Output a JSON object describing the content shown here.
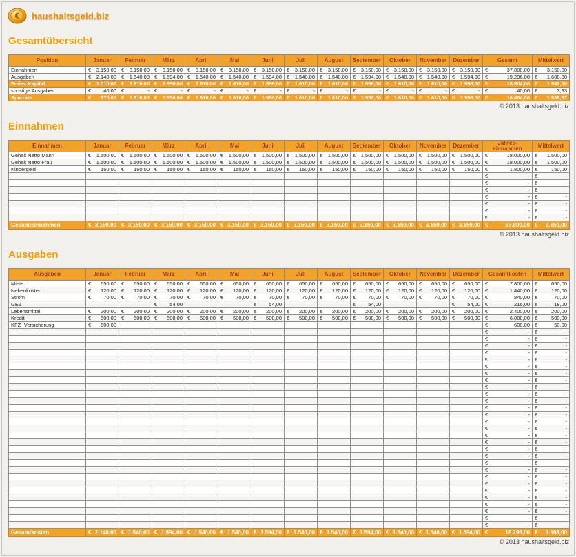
{
  "logo": {
    "text": "haushaltsgeld.biz",
    "icon": "euro-coin-logo-icon"
  },
  "copyright": "© 2013 haushaltsgeld.biz",
  "currency_symbol": "€",
  "colors": {
    "accent_orange": "#f2a129",
    "title_orange": "#f59c00",
    "header_text": "#9b3402",
    "page_background": "#f2f0ec",
    "grid_border": "#8f8f8f"
  },
  "sections": [
    {
      "title": "Gesamtübersicht",
      "table_name": "table-gesamtuebersicht",
      "columns": [
        "Position",
        "Januar",
        "Februar",
        "März",
        "April",
        "Mai",
        "Juni",
        "Juli",
        "August",
        "September",
        "Oktober",
        "November",
        "Dezember",
        "Gesamt",
        "Mittelwert"
      ],
      "rows": [
        {
          "label": "Einnahmen",
          "hl": false,
          "values": [
            "3.150,00",
            "3.150,00",
            "3.150,00",
            "3.150,00",
            "3.150,00",
            "3.150,00",
            "3.150,00",
            "3.150,00",
            "3.150,00",
            "3.150,00",
            "3.150,00",
            "3.150,00",
            "37.800,00",
            "3.150,00"
          ]
        },
        {
          "label": "Ausgaben",
          "hl": false,
          "values": [
            "2.140,00",
            "1.540,00",
            "1.594,00",
            "1.540,00",
            "1.540,00",
            "1.594,00",
            "1.540,00",
            "1.540,00",
            "1.594,00",
            "1.540,00",
            "1.540,00",
            "1.594,00",
            "19.296,00",
            "1.608,00"
          ]
        },
        {
          "label": "Freies Kapital",
          "hl": true,
          "values": [
            "1.010,00",
            "1.610,00",
            "1.556,00",
            "1.610,00",
            "1.610,00",
            "1.556,00",
            "1.610,00",
            "1.610,00",
            "1.556,00",
            "1.610,00",
            "1.610,00",
            "1.556,00",
            "18.504,00",
            "1.542,00"
          ]
        },
        {
          "label": "sonstige Ausgaben",
          "hl": false,
          "values": [
            "40,00",
            "-",
            "-",
            "-",
            "-",
            "-",
            "-",
            "-",
            "-",
            "-",
            "-",
            "-",
            "40,00",
            "3,33"
          ]
        },
        {
          "label": "Sparrate",
          "hl": true,
          "values": [
            "970,00",
            "1.610,00",
            "1.556,00",
            "1.610,00",
            "1.610,00",
            "1.556,00",
            "1.610,00",
            "1.610,00",
            "1.556,00",
            "1.610,00",
            "1.610,00",
            "1.556,00",
            "18.464,00",
            "1.538,67"
          ]
        }
      ],
      "empty_rows": null,
      "footer": null
    },
    {
      "title": "Einnahmen",
      "table_name": "table-einnahmen",
      "columns": [
        "Einnahmen",
        "Januar",
        "Februar",
        "März",
        "April",
        "Mai",
        "Juni",
        "Juli",
        "August",
        "September",
        "Oktober",
        "November",
        "Dezember",
        "Jahres-\neinnahmen",
        "Mittelwert"
      ],
      "rows": [
        {
          "label": "Gehalt Netto Mann",
          "hl": false,
          "values": [
            "1.500,00",
            "1.500,00",
            "1.500,00",
            "1.500,00",
            "1.500,00",
            "1.500,00",
            "1.500,00",
            "1.500,00",
            "1.500,00",
            "1.500,00",
            "1.500,00",
            "1.500,00",
            "18.000,00",
            "1.500,00"
          ]
        },
        {
          "label": "Gehalt Netto Frau",
          "hl": false,
          "values": [
            "1.500,00",
            "1.500,00",
            "1.500,00",
            "1.500,00",
            "1.500,00",
            "1.500,00",
            "1.500,00",
            "1.500,00",
            "1.500,00",
            "1.500,00",
            "1.500,00",
            "1.500,00",
            "18.000,00",
            "1.500,00"
          ]
        },
        {
          "label": "Kindergeld",
          "hl": false,
          "values": [
            "150,00",
            "150,00",
            "150,00",
            "150,00",
            "150,00",
            "150,00",
            "150,00",
            "150,00",
            "150,00",
            "150,00",
            "150,00",
            "150,00",
            "1.800,00",
            "150,00"
          ]
        }
      ],
      "empty_rows": {
        "count": 7,
        "values": [
          "",
          "",
          "",
          "",
          "",
          "",
          "",
          "",
          "",
          "",
          "",
          "",
          "-",
          "-"
        ]
      },
      "footer": {
        "label": "Gesamteinnahmen",
        "values": [
          "3.150,00",
          "3.150,00",
          "3.150,00",
          "3.150,00",
          "3.150,00",
          "3.150,00",
          "3.150,00",
          "3.150,00",
          "3.150,00",
          "3.150,00",
          "3.150,00",
          "3.150,00",
          "37.800,00",
          "3.150,00"
        ]
      }
    },
    {
      "title": "Ausgaben",
      "table_name": "table-ausgaben",
      "columns": [
        "Ausgaben",
        "Januar",
        "Februar",
        "März",
        "April",
        "Mai",
        "Juni",
        "Juli",
        "August",
        "September",
        "Oktober",
        "November",
        "Dezember",
        "Gesamtkosten",
        "Mittelwert"
      ],
      "rows": [
        {
          "label": "Miete",
          "hl": false,
          "values": [
            "650,00",
            "650,00",
            "650,00",
            "650,00",
            "650,00",
            "650,00",
            "650,00",
            "650,00",
            "650,00",
            "650,00",
            "650,00",
            "650,00",
            "7.800,00",
            "650,00"
          ]
        },
        {
          "label": "Nebenkosten",
          "hl": false,
          "values": [
            "120,00",
            "120,00",
            "120,00",
            "120,00",
            "120,00",
            "120,00",
            "120,00",
            "120,00",
            "120,00",
            "120,00",
            "120,00",
            "120,00",
            "1.440,00",
            "120,00"
          ]
        },
        {
          "label": "Strom",
          "hl": false,
          "values": [
            "70,00",
            "70,00",
            "70,00",
            "70,00",
            "70,00",
            "70,00",
            "70,00",
            "70,00",
            "70,00",
            "70,00",
            "70,00",
            "70,00",
            "840,00",
            "70,00"
          ]
        },
        {
          "label": "GEZ",
          "hl": false,
          "values": [
            "",
            "",
            "54,00",
            "",
            "",
            "54,00",
            "",
            "",
            "54,00",
            "",
            "",
            "54,00",
            "216,00",
            "18,00"
          ]
        },
        {
          "label": "Lebensmittel",
          "hl": false,
          "values": [
            "200,00",
            "200,00",
            "200,00",
            "200,00",
            "200,00",
            "200,00",
            "200,00",
            "200,00",
            "200,00",
            "200,00",
            "200,00",
            "200,00",
            "2.400,00",
            "200,00"
          ]
        },
        {
          "label": "Kredit",
          "hl": false,
          "values": [
            "500,00",
            "500,00",
            "500,00",
            "500,00",
            "500,00",
            "500,00",
            "500,00",
            "500,00",
            "500,00",
            "500,00",
            "500,00",
            "500,00",
            "6.000,00",
            "500,00"
          ]
        },
        {
          "label": "KFZ- Versicherung",
          "hl": false,
          "values": [
            "600,00",
            "",
            "",
            "",
            "",
            "",
            "",
            "",
            "",
            "",
            "",
            "",
            "600,00",
            "50,00"
          ]
        }
      ],
      "empty_rows": {
        "count": 29,
        "values": [
          "",
          "",
          "",
          "",
          "",
          "",
          "",
          "",
          "",
          "",
          "",
          "",
          "-",
          "-"
        ]
      },
      "footer": {
        "label": "Gesamtkosten",
        "values": [
          "2.140,00",
          "1.540,00",
          "1.594,00",
          "1.540,00",
          "1.540,00",
          "1.594,00",
          "1.540,00",
          "1.540,00",
          "1.594,00",
          "1.540,00",
          "1.540,00",
          "1.594,00",
          "19.296,00",
          "1.608,00"
        ]
      }
    }
  ]
}
